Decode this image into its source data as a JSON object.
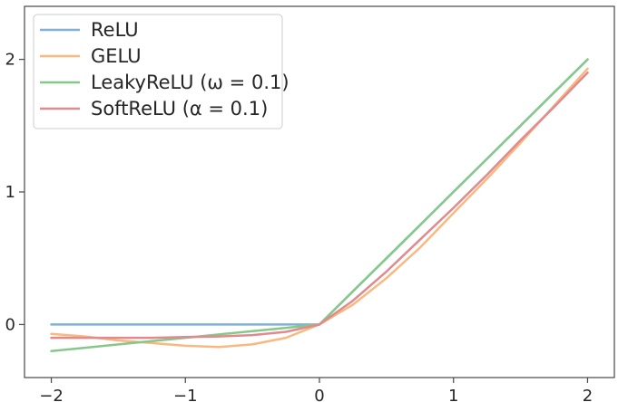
{
  "chart_data": {
    "type": "line",
    "title": "",
    "xlabel": "",
    "ylabel": "",
    "xlim": [
      -2.2,
      2.2
    ],
    "ylim": [
      -0.4,
      2.4
    ],
    "xticks": [
      -2,
      -1,
      0,
      1,
      2
    ],
    "xtick_labels": [
      "−2",
      "−1",
      "0",
      "1",
      "2"
    ],
    "yticks": [
      0,
      1,
      2
    ],
    "ytick_labels": [
      "0",
      "1",
      "2"
    ],
    "grid": false,
    "legend_position": "top-left",
    "x": [
      -2.0,
      -1.75,
      -1.5,
      -1.25,
      -1.0,
      -0.75,
      -0.5,
      -0.25,
      0.0,
      0.25,
      0.5,
      0.75,
      1.0,
      1.25,
      1.5,
      1.75,
      2.0
    ],
    "series": [
      {
        "name": "ReLU",
        "color": "#7fb0d8",
        "values": [
          0,
          0,
          0,
          0,
          0,
          0,
          0,
          0,
          0,
          0.25,
          0.5,
          0.75,
          1.0,
          1.25,
          1.5,
          1.75,
          2.0
        ]
      },
      {
        "name": "GELU",
        "color": "#f9b880",
        "values": [
          -0.07,
          -0.09,
          -0.12,
          -0.14,
          -0.16,
          -0.17,
          -0.15,
          -0.1,
          0.0,
          0.15,
          0.35,
          0.58,
          0.84,
          1.1,
          1.37,
          1.65,
          1.93
        ]
      },
      {
        "name": "LeakyReLU (ω = 0.1)",
        "color": "#86c889",
        "values": [
          -0.2,
          -0.175,
          -0.15,
          -0.125,
          -0.1,
          -0.075,
          -0.05,
          -0.025,
          0.0,
          0.25,
          0.5,
          0.75,
          1.0,
          1.25,
          1.5,
          1.75,
          2.0
        ]
      },
      {
        "name": "SoftReLU (α = 0.1)",
        "color": "#e08a8d",
        "values": [
          -0.1,
          -0.1,
          -0.1,
          -0.1,
          -0.095,
          -0.09,
          -0.08,
          -0.055,
          0.0,
          0.18,
          0.4,
          0.64,
          0.88,
          1.13,
          1.39,
          1.64,
          1.9
        ]
      }
    ]
  }
}
